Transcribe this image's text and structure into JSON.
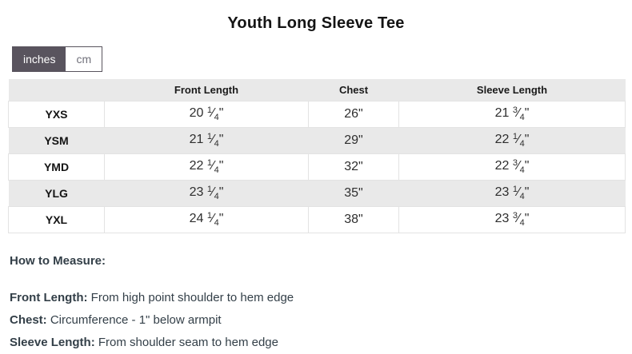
{
  "page": {
    "title": "Youth Long Sleeve Tee"
  },
  "unit_toggle": {
    "options": [
      {
        "label": "inches",
        "selected": true
      },
      {
        "label": "cm",
        "selected": false
      }
    ]
  },
  "table": {
    "columns": [
      "",
      "Front Length",
      "Chest",
      "Sleeve Length"
    ],
    "rows": [
      {
        "size": "YXS",
        "front_length": "20 1/4\"",
        "chest": "26\"",
        "sleeve_length": "21 3/4\""
      },
      {
        "size": "YSM",
        "front_length": "21 1/4\"",
        "chest": "29\"",
        "sleeve_length": "22 1/4\""
      },
      {
        "size": "YMD",
        "front_length": "22 1/4\"",
        "chest": "32\"",
        "sleeve_length": "22 3/4\""
      },
      {
        "size": "YLG",
        "front_length": "23 1/4\"",
        "chest": "35\"",
        "sleeve_length": "23 1/4\""
      },
      {
        "size": "YXL",
        "front_length": "24 1/4\"",
        "chest": "38\"",
        "sleeve_length": "23 3/4\""
      }
    ]
  },
  "how_to_measure": {
    "heading": "How to Measure:",
    "items": [
      {
        "label": "Front Length:",
        "text": "From high point shoulder to hem edge"
      },
      {
        "label": "Chest:",
        "text": "Circumference - 1\" below armpit"
      },
      {
        "label": "Sleeve Length:",
        "text": "From shoulder seam to hem edge"
      }
    ]
  },
  "colors": {
    "toggle_selected_bg": "#59545e",
    "toggle_unselected_text": "#70707a",
    "row_stripe_bg": "#e9e9e9",
    "header_bg": "#e9e9e9",
    "cell_border": "#e3e3e3"
  }
}
